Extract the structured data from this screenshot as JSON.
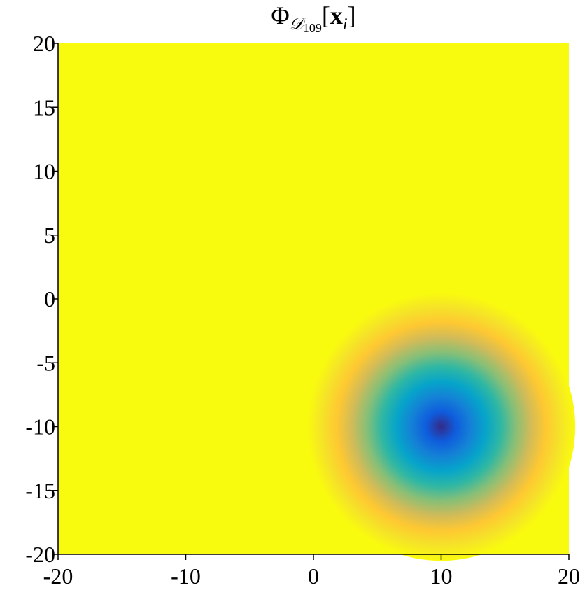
{
  "chart_data": {
    "type": "radial-field",
    "title_parts": {
      "symbol": "Φ",
      "sub": "𝒟",
      "subsub": "109",
      "open": "[",
      "arg": "x",
      "argsub": "i",
      "close": "]"
    },
    "xlim": [
      -20,
      20
    ],
    "ylim": [
      -20,
      20
    ],
    "xticks": [
      -20,
      -10,
      0,
      10,
      20
    ],
    "yticks": [
      -20,
      -15,
      -10,
      -5,
      0,
      5,
      10,
      15,
      20
    ],
    "peak": {
      "x": 10,
      "y": -10
    },
    "extent": 10.5,
    "background": "#f9fb0e",
    "colormap": [
      "#352a87",
      "#0f5cdd",
      "#1481d6",
      "#06a4ca",
      "#2eb7a4",
      "#87bf77",
      "#d1bb59",
      "#fec832",
      "#f5e328",
      "#f9fb0e"
    ]
  }
}
